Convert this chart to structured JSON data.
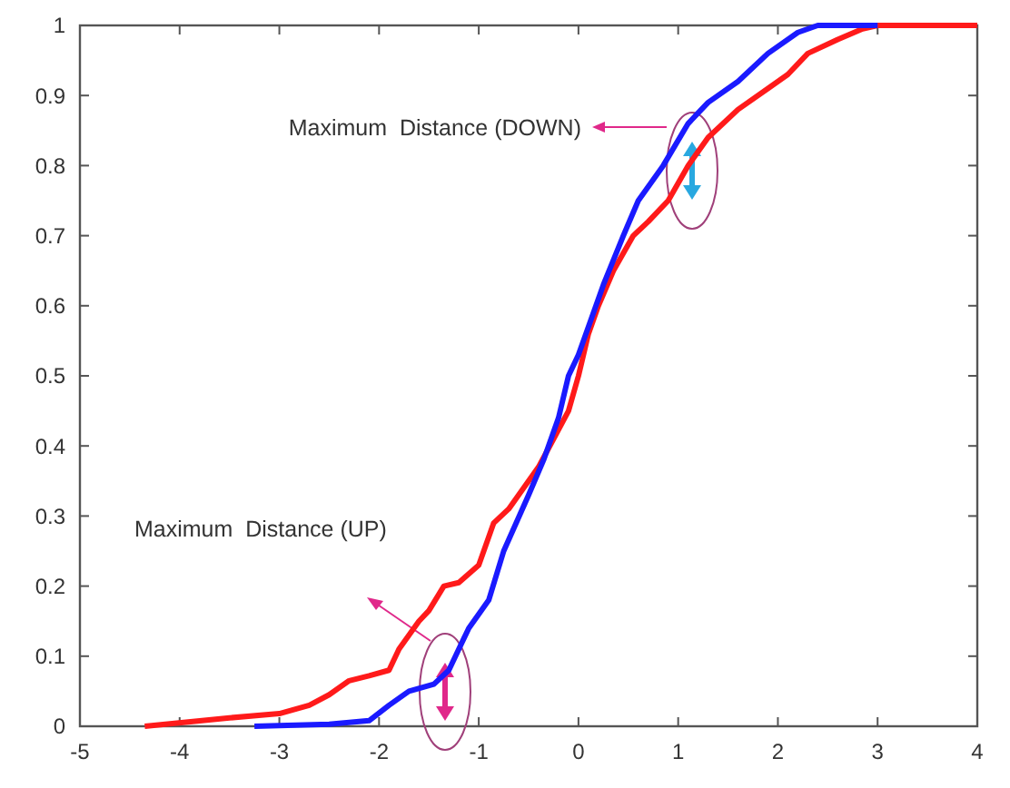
{
  "chart_data": {
    "type": "line",
    "xlim": [
      -5,
      4
    ],
    "xticks": [
      -5,
      -4,
      -3,
      -2,
      -1,
      0,
      1,
      2,
      3,
      4
    ],
    "ylim": [
      0,
      1
    ],
    "yticks": [
      0,
      0.1,
      0.2,
      0.3,
      0.4,
      0.5,
      0.6,
      0.7,
      0.8,
      0.9,
      1
    ],
    "grid": false,
    "line_style": "solid",
    "marker": "none",
    "series": [
      {
        "color": "#ff1a1a",
        "x": [
          -4.35,
          -3.5,
          -3,
          -2.7,
          -2.5,
          -2.3,
          -2.1,
          -1.9,
          -1.8,
          -1.6,
          -1.5,
          -1.35,
          -1.2,
          -1,
          -0.85,
          -0.7,
          -0.55,
          -0.4,
          -0.25,
          -0.1,
          0,
          0.1,
          0.2,
          0.35,
          0.55,
          0.7,
          0.9,
          1.1,
          1.3,
          1.6,
          1.9,
          2.1,
          2.3,
          2.6,
          2.85,
          3,
          4
        ],
        "values": [
          0,
          0.012,
          0.018,
          0.03,
          0.045,
          0.065,
          0.072,
          0.08,
          0.11,
          0.15,
          0.165,
          0.2,
          0.205,
          0.23,
          0.29,
          0.31,
          0.34,
          0.37,
          0.41,
          0.45,
          0.5,
          0.56,
          0.6,
          0.65,
          0.7,
          0.72,
          0.75,
          0.8,
          0.84,
          0.88,
          0.91,
          0.93,
          0.96,
          0.98,
          0.995,
          1,
          1
        ]
      },
      {
        "color": "#1a1aff",
        "x": [
          -3.25,
          -2.5,
          -2.1,
          -1.9,
          -1.7,
          -1.45,
          -1.3,
          -1.1,
          -0.9,
          -0.75,
          -0.5,
          -0.35,
          -0.2,
          -0.1,
          0,
          0.1,
          0.25,
          0.45,
          0.6,
          0.85,
          1.1,
          1.3,
          1.6,
          1.9,
          2.2,
          2.4,
          3
        ],
        "values": [
          0,
          0.003,
          0.008,
          0.03,
          0.05,
          0.06,
          0.08,
          0.14,
          0.18,
          0.25,
          0.33,
          0.38,
          0.44,
          0.5,
          0.53,
          0.57,
          0.63,
          0.7,
          0.75,
          0.8,
          0.86,
          0.89,
          0.92,
          0.96,
          0.99,
          1,
          1
        ]
      }
    ],
    "annotations": [
      "Maximum  Distance (DOWN)",
      "Maximum  Distance (UP)"
    ]
  }
}
